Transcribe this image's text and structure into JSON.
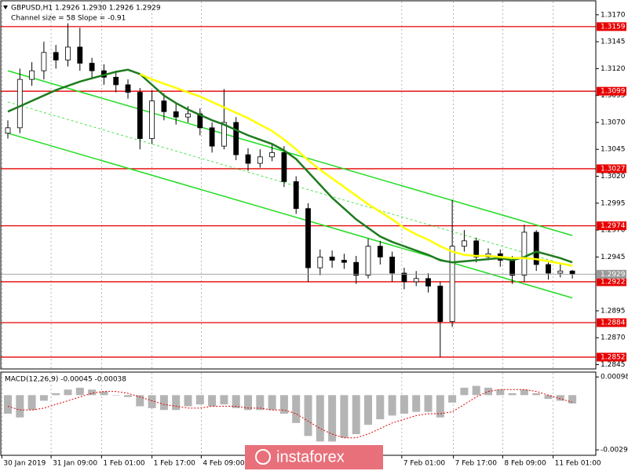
{
  "watermark": "instaforex",
  "chart_data": [
    {
      "type": "candlestick",
      "title": "GBPUSD,H1",
      "subtitle": "1.2926 1.2930 1.2926 1.2929",
      "annotation": "Channel size = 58 Slope = -0.91",
      "open": [
        1.306,
        1.3065,
        1.311,
        1.3118,
        1.3135,
        1.3128,
        1.314,
        1.3125,
        1.3118,
        1.3112,
        1.3105,
        1.3098,
        1.3055,
        1.309,
        1.308,
        1.3075,
        1.3078,
        1.3065,
        1.3048,
        1.307,
        1.304,
        1.3032,
        1.3038,
        1.3042,
        1.3015,
        1.299,
        1.2935,
        1.2945,
        1.2942,
        1.294,
        1.2928,
        1.2955,
        1.2945,
        1.293,
        1.2922,
        1.2925,
        1.2918,
        1.2885,
        1.2955,
        1.296,
        1.2945,
        1.2948,
        1.2942,
        1.2928,
        1.2968,
        1.2938,
        1.293,
        1.2932
      ],
      "high": [
        1.3072,
        1.312,
        1.3126,
        1.3145,
        1.3142,
        1.3162,
        1.3158,
        1.313,
        1.3124,
        1.3118,
        1.311,
        1.3102,
        1.31,
        1.3097,
        1.3088,
        1.3085,
        1.3083,
        1.307,
        1.3101,
        1.3075,
        1.3046,
        1.3045,
        1.305,
        1.3048,
        1.302,
        1.2995,
        1.2952,
        1.2951,
        1.2948,
        1.2946,
        1.2962,
        1.296,
        1.295,
        1.2935,
        1.2932,
        1.293,
        1.2922,
        1.2998,
        1.297,
        1.2963,
        1.2953,
        1.2952,
        1.2946,
        1.2975,
        1.297,
        1.294,
        1.2938,
        1.2933
      ],
      "low": [
        1.3055,
        1.306,
        1.3104,
        1.311,
        1.312,
        1.3122,
        1.3118,
        1.311,
        1.3105,
        1.3098,
        1.3092,
        1.3045,
        1.305,
        1.3072,
        1.3068,
        1.307,
        1.3058,
        1.3042,
        1.3045,
        1.3035,
        1.3025,
        1.3028,
        1.3034,
        1.301,
        1.2985,
        1.2922,
        1.2928,
        1.2935,
        1.2934,
        1.292,
        1.2925,
        1.2938,
        1.2922,
        1.2915,
        1.2918,
        1.2912,
        1.2852,
        1.288,
        1.295,
        1.294,
        1.2942,
        1.2936,
        1.292,
        1.2922,
        1.2932,
        1.2924,
        1.2926,
        1.2925
      ],
      "close": [
        1.3065,
        1.311,
        1.3118,
        1.3135,
        1.3128,
        1.314,
        1.3125,
        1.3118,
        1.3112,
        1.3105,
        1.3098,
        1.3055,
        1.309,
        1.308,
        1.3075,
        1.3078,
        1.3065,
        1.3048,
        1.307,
        1.304,
        1.3032,
        1.3038,
        1.3042,
        1.3015,
        1.299,
        1.2935,
        1.2945,
        1.2942,
        1.294,
        1.2928,
        1.2955,
        1.2945,
        1.293,
        1.2922,
        1.2925,
        1.2918,
        1.2885,
        1.2955,
        1.296,
        1.2945,
        1.2948,
        1.2942,
        1.2928,
        1.2968,
        1.2938,
        1.293,
        1.2932,
        1.2929
      ],
      "series": [
        {
          "color": "#1e7b1e",
          "values": [
            1.308,
            1.3085,
            1.309,
            1.3095,
            1.31,
            1.3104,
            1.3108,
            1.3111,
            1.3114,
            1.3117,
            1.3119,
            1.3115,
            1.3105,
            1.3095,
            1.3088,
            1.3082,
            1.3077,
            1.3072,
            1.3068,
            1.3063,
            1.3058,
            1.3054,
            1.305,
            1.3044,
            1.3036,
            1.3024,
            1.3012,
            1.3,
            1.299,
            1.298,
            1.2972,
            1.2964,
            1.2959,
            1.2955,
            1.2951,
            1.2947,
            1.2942,
            1.294,
            1.2941,
            1.2942,
            1.2943,
            1.2944,
            1.2942,
            1.2945,
            1.295,
            1.2947,
            1.2944,
            1.294
          ]
        },
        {
          "color": "#ffff00",
          "values": [
            null,
            null,
            null,
            null,
            null,
            null,
            null,
            null,
            null,
            null,
            null,
            1.3115,
            1.311,
            1.3106,
            1.3102,
            1.3098,
            1.3094,
            1.3089,
            1.3084,
            1.3079,
            1.3074,
            1.3068,
            1.3062,
            1.3054,
            1.3045,
            1.3035,
            1.3026,
            1.3018,
            1.301,
            1.3002,
            1.2994,
            1.2987,
            1.298,
            1.2972,
            1.2966,
            1.2961,
            1.2955,
            1.295,
            1.2947,
            1.2946,
            1.2946,
            1.2945,
            1.2944,
            1.2944,
            1.2943,
            1.2941,
            1.2939,
            1.2937
          ]
        }
      ],
      "channels": [
        {
          "color": "#22dd22",
          "dashed": false,
          "x": [
            0,
            47
          ],
          "values": [
            1.3118,
            1.2965
          ]
        },
        {
          "color": "#22dd22",
          "dashed": false,
          "x": [
            0,
            47
          ],
          "values": [
            1.306,
            1.2907
          ]
        },
        {
          "color": "#22dd22",
          "dashed": true,
          "x": [
            0,
            47
          ],
          "values": [
            1.3089,
            1.2936
          ]
        }
      ],
      "levels": [
        1.3159,
        1.3099,
        1.3027,
        1.2974,
        1.2922,
        1.2884,
        1.2852
      ],
      "level_color": "#e80000",
      "last_price": {
        "value": 1.2929,
        "color": "#9a9a9a"
      },
      "ylim": [
        1.2841,
        1.3183
      ],
      "yticks": [
        {
          "value": 1.317,
          "label": "1.3170"
        },
        1.3145,
        {
          "value": 1.312,
          "label": "1.3120"
        },
        1.3095,
        {
          "value": 1.307,
          "label": "1.3070"
        },
        1.3045,
        {
          "value": 1.302,
          "label": "1.3020"
        },
        1.2995,
        {
          "value": 1.297,
          "label": "1.2970"
        },
        1.2945,
        1.2895,
        {
          "value": 1.287,
          "label": "1.2870"
        },
        1.2845
      ],
      "xticks": [
        {
          "value": -0.5,
          "label": "30 Jan 2019"
        },
        {
          "value": 3.6,
          "label": "31 Jan 09:00"
        },
        {
          "value": 7.8,
          "label": "1 Feb 01:00"
        },
        {
          "value": 12,
          "label": "1 Feb 17:00"
        },
        {
          "value": 16.1,
          "label": "4 Feb 09:00"
        },
        {
          "value": 32.8,
          "label": "7 Feb 01:00"
        },
        {
          "value": 37.1,
          "label": "7 Feb 17:00"
        },
        {
          "value": 41.2,
          "label": "8 Feb 09:00"
        },
        {
          "value": 45.4,
          "label": "11 Feb 01:00"
        }
      ],
      "grid": "x"
    },
    {
      "type": "macd",
      "title": "MACD(12,26,9) -0.00045 -0.00038",
      "histogram": {
        "color": "#b4b4b4",
        "values": [
          -0.001,
          -0.0012,
          -0.0008,
          -0.0003,
          0.0001,
          0.0003,
          0.0004,
          0.0003,
          0.0002,
          0.0,
          -0.0001,
          -0.0006,
          -0.0007,
          -0.0008,
          -0.0008,
          -0.0006,
          -0.0005,
          -0.0006,
          -0.0005,
          -0.0007,
          -0.0008,
          -0.0008,
          -0.0008,
          -0.001,
          -0.0015,
          -0.0022,
          -0.0025,
          -0.0025,
          -0.0023,
          -0.0021,
          -0.0016,
          -0.0013,
          -0.0011,
          -0.001,
          -0.0009,
          -0.0009,
          -0.0012,
          -0.0004,
          0.0004,
          0.0005,
          0.0004,
          0.0003,
          0.0001,
          0.0003,
          0.0001,
          -0.0002,
          -0.0003,
          -0.00045
        ]
      },
      "signal": {
        "color": "#e00000",
        "values": [
          -0.0006,
          -0.0008,
          -0.0008,
          -0.0007,
          -0.0005,
          -0.0003,
          -0.0001,
          0.0001,
          0.0002,
          0.0002,
          0.0001,
          -0.0001,
          -0.0003,
          -0.0005,
          -0.0006,
          -0.0007,
          -0.0007,
          -0.0006,
          -0.0006,
          -0.0006,
          -0.0007,
          -0.0007,
          -0.0008,
          -0.0008,
          -0.001,
          -0.0014,
          -0.0018,
          -0.0021,
          -0.0023,
          -0.0023,
          -0.0021,
          -0.0018,
          -0.0015,
          -0.0013,
          -0.0011,
          -0.001,
          -0.001,
          -0.0009,
          -0.0005,
          -0.0001,
          0.0002,
          0.0003,
          0.0003,
          0.0003,
          0.0002,
          0.0,
          -0.0002,
          -0.00038
        ]
      },
      "ylim": [
        -0.0032,
        0.0012
      ],
      "yticks": [
        0.00098,
        -0.00295
      ]
    }
  ]
}
